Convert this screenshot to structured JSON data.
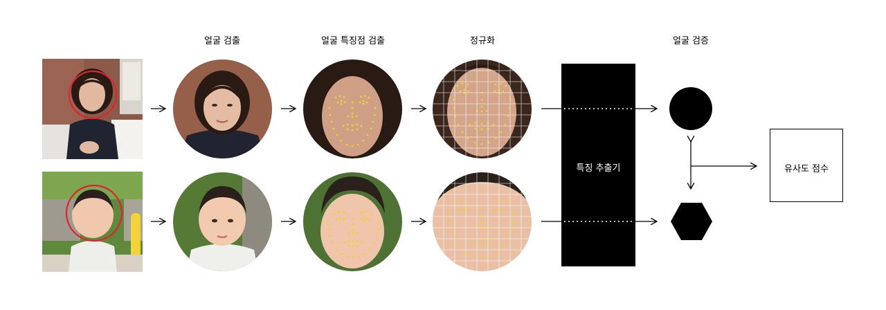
{
  "headings": {
    "face_detection": "얼굴 검출",
    "landmark_detection": "얼굴 특징점 검출",
    "normalization": "정규화",
    "face_verification": "얼굴 검증"
  },
  "extractor": {
    "label": "특징 추출기"
  },
  "score": {
    "label": "유사도 점수"
  },
  "colors": {
    "detection_circle": "#e0232e",
    "landmark_dots": "#f2d12a",
    "grid_lines": "#ffffff",
    "block": "#000000"
  },
  "icons": {
    "arrow": "right-arrow-icon",
    "embedding_a": "circle-embedding-icon",
    "embedding_b": "hexagon-embedding-icon"
  }
}
